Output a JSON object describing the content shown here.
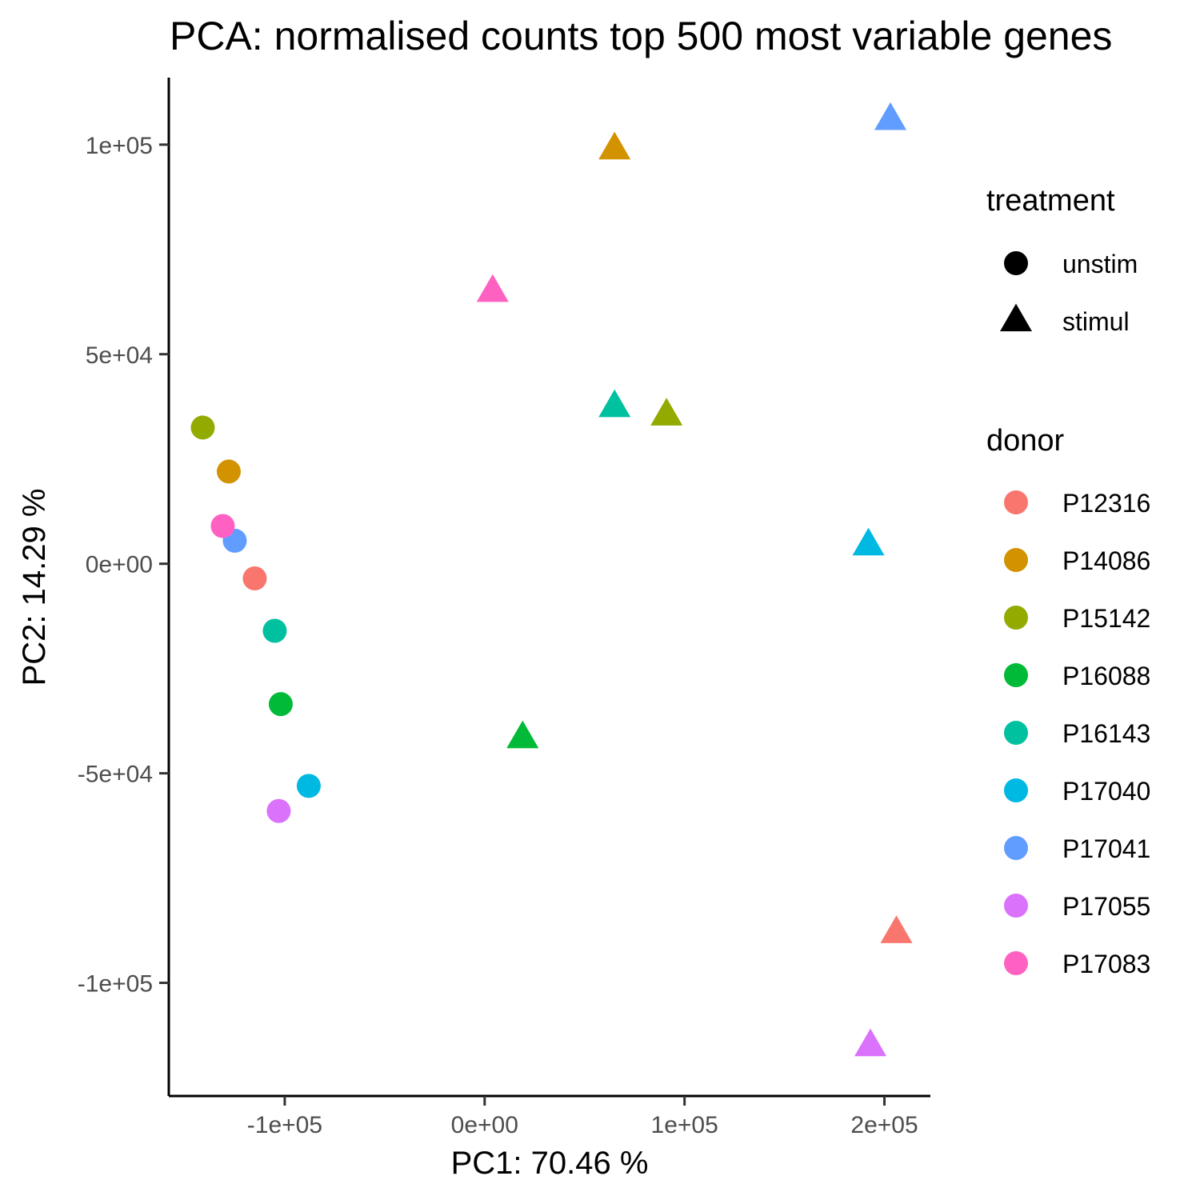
{
  "chart_data": {
    "type": "scatter",
    "title": "PCA: normalised counts top 500 most variable genes",
    "xlabel": "PC1:  70.46 %",
    "ylabel": "PC2:  14.29 %",
    "xlim": [
      -158000,
      223000
    ],
    "ylim": [
      -127000,
      116000
    ],
    "x_ticks": [
      {
        "value": -100000,
        "label": "-1e+05"
      },
      {
        "value": 0,
        "label": "0e+00"
      },
      {
        "value": 100000,
        "label": "1e+05"
      },
      {
        "value": 200000,
        "label": "2e+05"
      }
    ],
    "y_ticks": [
      {
        "value": 100000,
        "label": "1e+05"
      },
      {
        "value": 50000,
        "label": "5e+04"
      },
      {
        "value": 0,
        "label": "0e+00"
      },
      {
        "value": -50000,
        "label": "-5e+04"
      },
      {
        "value": -100000,
        "label": "-1e+05"
      }
    ],
    "grid": false,
    "legend_placement": "right",
    "legends": {
      "shape": {
        "title": "treatment",
        "entries": [
          {
            "label": "unstim",
            "shape": "circle"
          },
          {
            "label": "stimul",
            "shape": "triangle"
          }
        ]
      },
      "color": {
        "title": "donor",
        "entries": [
          {
            "label": "P12316",
            "color": "#F8766D"
          },
          {
            "label": "P14086",
            "color": "#D39200"
          },
          {
            "label": "P15142",
            "color": "#93AA00"
          },
          {
            "label": "P16088",
            "color": "#00BA38"
          },
          {
            "label": "P16143",
            "color": "#00C19F"
          },
          {
            "label": "P17040",
            "color": "#00B9E3"
          },
          {
            "label": "P17041",
            "color": "#619CFF"
          },
          {
            "label": "P17055",
            "color": "#DB72FB"
          },
          {
            "label": "P17083",
            "color": "#FF61C3"
          }
        ]
      }
    },
    "points": [
      {
        "donor": "P12316",
        "treatment": "unstim",
        "x": -115000,
        "y": -3500
      },
      {
        "donor": "P14086",
        "treatment": "unstim",
        "x": -128000,
        "y": 22000
      },
      {
        "donor": "P15142",
        "treatment": "unstim",
        "x": -141000,
        "y": 32500
      },
      {
        "donor": "P16088",
        "treatment": "unstim",
        "x": -102000,
        "y": -33500
      },
      {
        "donor": "P16143",
        "treatment": "unstim",
        "x": -105000,
        "y": -16000
      },
      {
        "donor": "P17040",
        "treatment": "unstim",
        "x": -88000,
        "y": -53000
      },
      {
        "donor": "P17041",
        "treatment": "unstim",
        "x": -125000,
        "y": 5500
      },
      {
        "donor": "P17055",
        "treatment": "unstim",
        "x": -103000,
        "y": -59000
      },
      {
        "donor": "P17083",
        "treatment": "unstim",
        "x": -131000,
        "y": 9000
      },
      {
        "donor": "P12316",
        "treatment": "stimul",
        "x": 206000,
        "y": -88000
      },
      {
        "donor": "P14086",
        "treatment": "stimul",
        "x": 65000,
        "y": 99000
      },
      {
        "donor": "P15142",
        "treatment": "stimul",
        "x": 91000,
        "y": 35500
      },
      {
        "donor": "P16088",
        "treatment": "stimul",
        "x": 19000,
        "y": -41500
      },
      {
        "donor": "P16143",
        "treatment": "stimul",
        "x": 65000,
        "y": 37500
      },
      {
        "donor": "P17040",
        "treatment": "stimul",
        "x": 192000,
        "y": 4500
      },
      {
        "donor": "P17041",
        "treatment": "stimul",
        "x": 203000,
        "y": 106000
      },
      {
        "donor": "P17055",
        "treatment": "stimul",
        "x": 193000,
        "y": -115000
      },
      {
        "donor": "P17083",
        "treatment": "stimul",
        "x": 4000,
        "y": 65000
      }
    ]
  }
}
